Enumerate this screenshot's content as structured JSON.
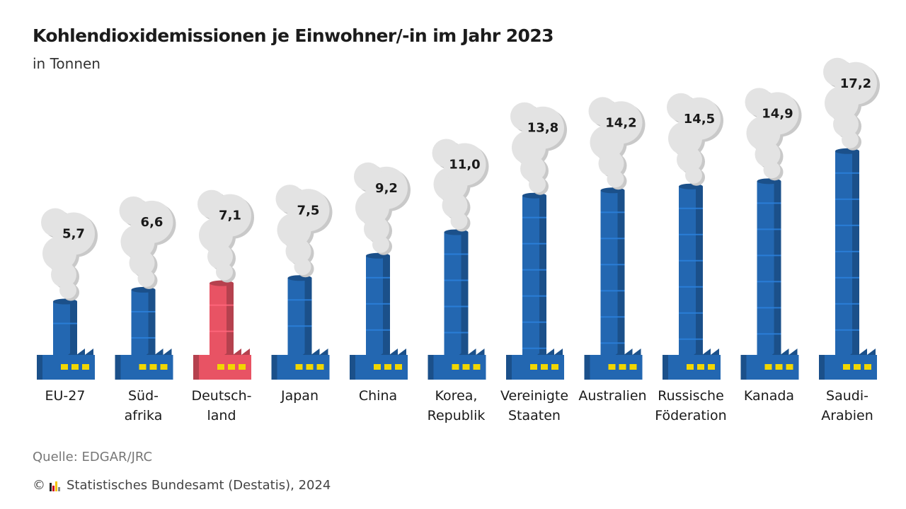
{
  "header": {
    "title": "Kohlendioxidemissionen je Einwohner/-in im Jahr 2023",
    "subtitle": "in Tonnen"
  },
  "footer": {
    "source": "Quelle: EDGAR/JRC",
    "copyright": "© ",
    "publisher": "Statistisches Bundesamt (Destatis), 2024"
  },
  "colors": {
    "chimney": "#2367b1",
    "highlight": "#e85364",
    "smoke": "#e3e3e3",
    "windows": "#f1d600"
  },
  "chart_data": {
    "type": "bar",
    "title": "Kohlendioxidemissionen je Einwohner/-in im Jahr 2023",
    "subtitle": "in Tonnen",
    "categories": [
      [
        "EU-27"
      ],
      [
        "Süd-",
        "afrika"
      ],
      [
        "Deutsch-",
        "land"
      ],
      [
        "Japan"
      ],
      [
        "China"
      ],
      [
        "Korea,",
        "Republik"
      ],
      [
        "Vereinigte",
        "Staaten"
      ],
      [
        "Australien"
      ],
      [
        "Russische",
        "Föderation"
      ],
      [
        "Kanada"
      ],
      [
        "Saudi-",
        "Arabien"
      ]
    ],
    "values": [
      5.7,
      6.6,
      7.1,
      7.5,
      9.2,
      11.0,
      13.8,
      14.2,
      14.5,
      14.9,
      17.2
    ],
    "value_labels": [
      "5,7",
      "6,6",
      "7,1",
      "7,5",
      "9,2",
      "11,0",
      "13,8",
      "14,2",
      "14,5",
      "14,9",
      "17,2"
    ],
    "highlight_index": 2,
    "unit": "Tonnen"
  }
}
